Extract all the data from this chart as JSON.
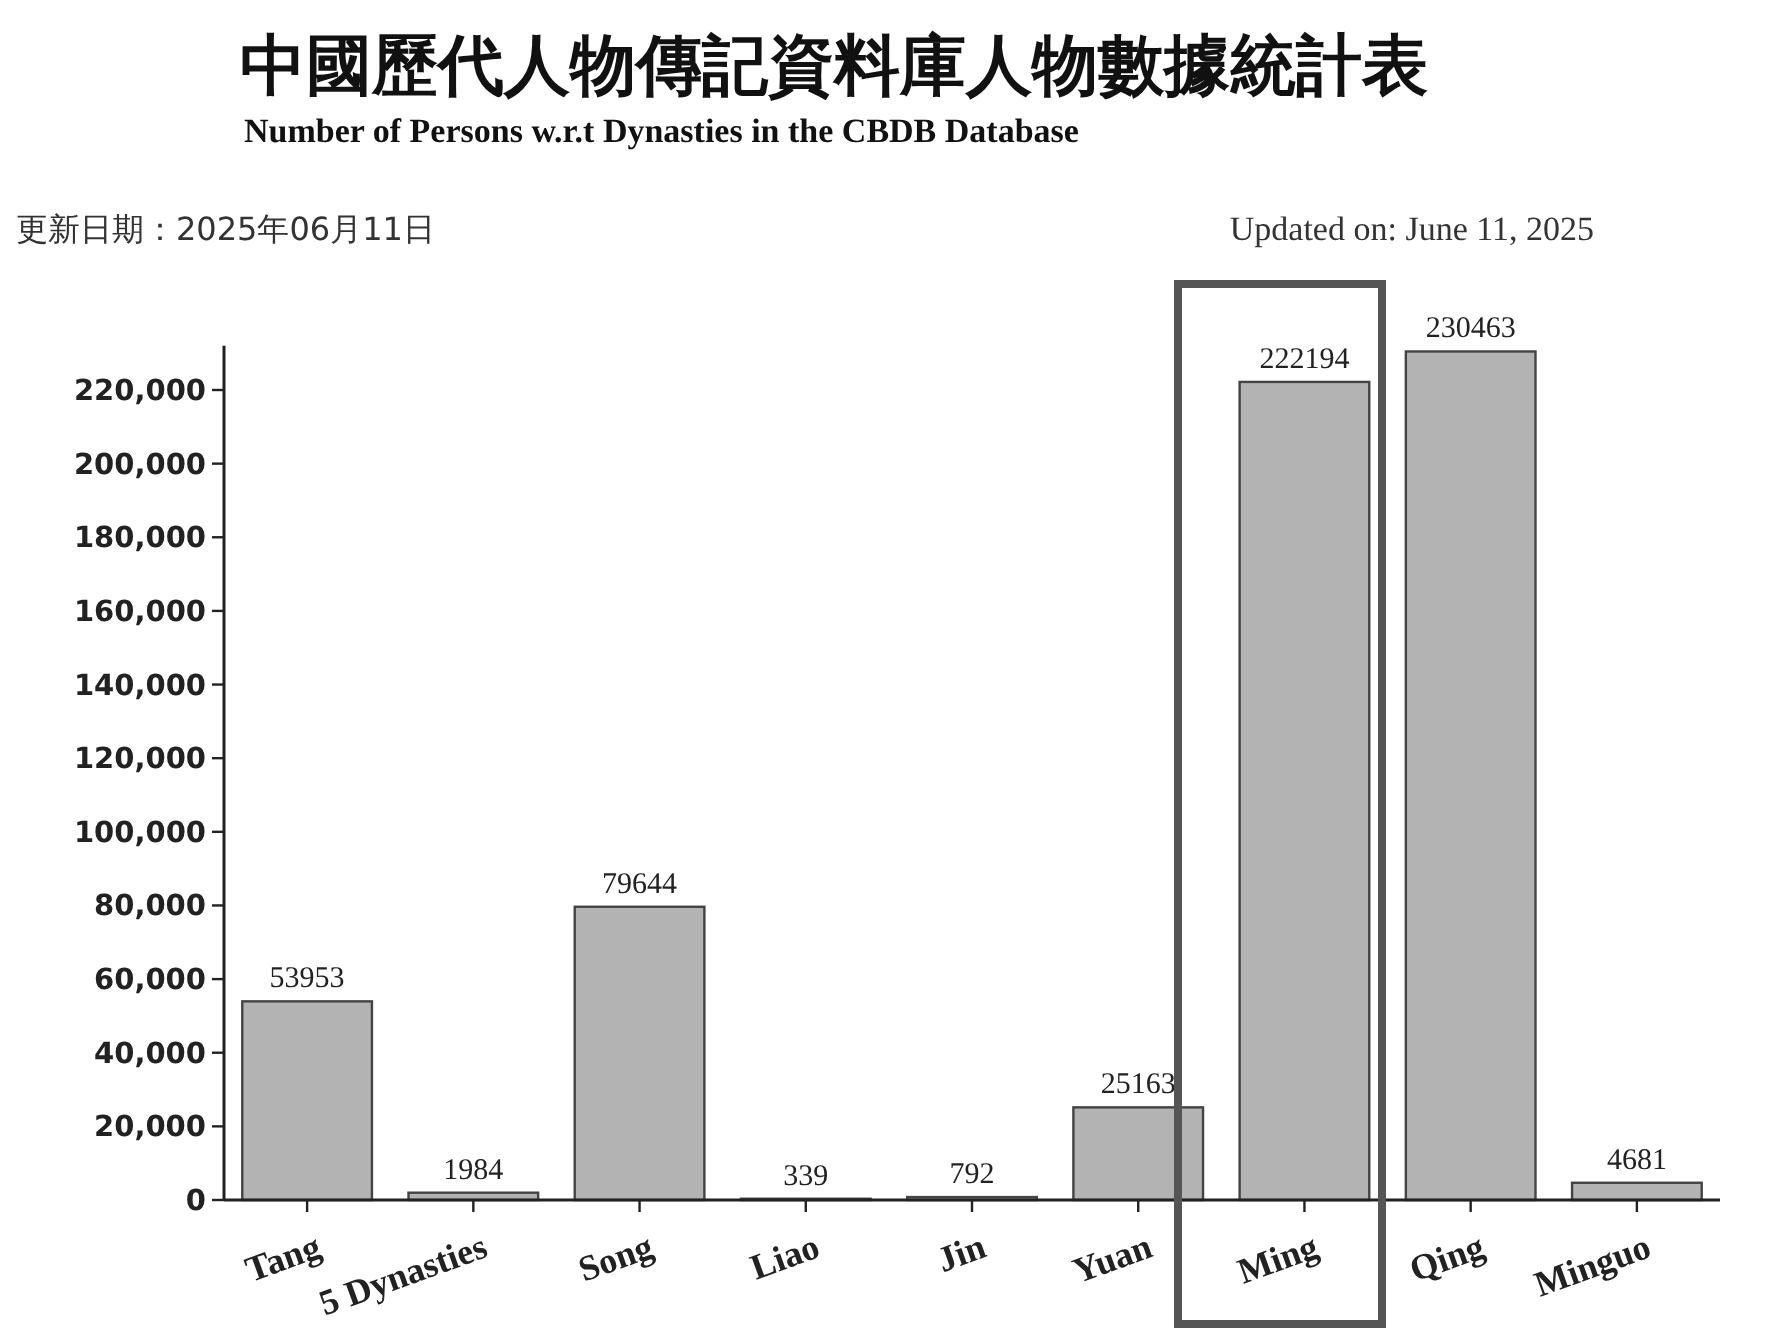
{
  "chart_data": {
    "type": "bar",
    "title": "中國歷代人物傳記資料庫人物數據統計表",
    "subtitle": "Number of Persons w.r.t Dynasties in the CBDB Database",
    "annotations": [
      "更新日期：2025年06月11日",
      "Updated on: June 11, 2025"
    ],
    "categories": [
      "Tang",
      "5 Dynasties",
      "Song",
      "Liao",
      "Jin",
      "Yuan",
      "Ming",
      "Qing",
      "Minguo"
    ],
    "values": [
      53953,
      1984,
      79644,
      339,
      792,
      25163,
      222194,
      230463,
      4681
    ],
    "color": "#b3b3b3",
    "data_labels": true,
    "ylim": [
      0,
      232000
    ],
    "yticks": [
      {
        "value": 0,
        "label": "0"
      },
      {
        "value": 20000,
        "label": "20,000"
      },
      {
        "value": 40000,
        "label": "40,000"
      },
      {
        "value": 60000,
        "label": "60,000"
      },
      {
        "value": 80000,
        "label": "80,000"
      },
      {
        "value": 100000,
        "label": "100,000"
      },
      {
        "value": 120000,
        "label": "120,000"
      },
      {
        "value": 140000,
        "label": "140,000"
      },
      {
        "value": 160000,
        "label": "160,000"
      },
      {
        "value": 180000,
        "label": "180,000"
      },
      {
        "value": 200000,
        "label": "200,000"
      },
      {
        "value": 220000,
        "label": "220,000"
      }
    ]
  }
}
